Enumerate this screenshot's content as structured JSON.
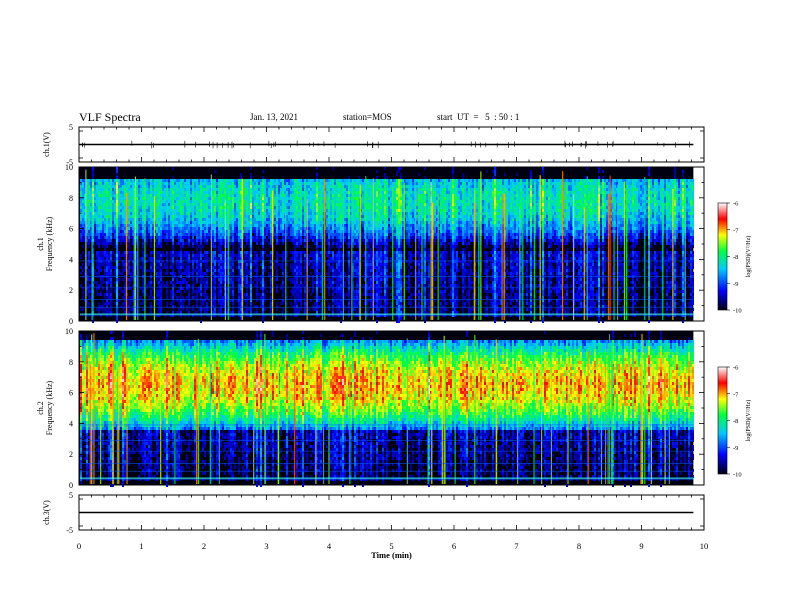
{
  "header": {
    "title": "VLF Spectra",
    "date": "Jan. 13, 2021",
    "station": "station=MOS",
    "start": "start  UT  =   5  : 50 : 1"
  },
  "colors": {
    "background": "#ffffff",
    "axis": "#000000",
    "spectrogram_floor": "#000010"
  },
  "chart_data": [
    {
      "type": "line",
      "name": "ch1-waveform",
      "ylabel": "ch.1(V)",
      "ylim": [
        -5,
        5
      ],
      "yticks": [
        "5",
        "-5"
      ],
      "x": [
        0,
        9.83
      ],
      "y": [
        0,
        0
      ],
      "xlim": [
        0,
        10
      ]
    },
    {
      "type": "heatmap",
      "name": "ch1-spectrogram",
      "ylabel": "ch.1\nFrequency (kHz)",
      "ylabel_lines": [
        "ch.1",
        "Frequency (kHz)"
      ],
      "ylim": [
        0,
        10
      ],
      "yticks": [
        "0",
        "2",
        "4",
        "6",
        "8",
        "10"
      ],
      "xlim": [
        0,
        10
      ],
      "data_end_min": 9.83,
      "band_low_khz": 4.5,
      "band_high_khz": 9.2,
      "peak_khz": 7.8,
      "peak_level": -8.2,
      "colorbar": {
        "label": "log(PSD)(V²/Hz)",
        "ticks": [
          "-6",
          "-7",
          "-8",
          "-9",
          "-10"
        ],
        "range": [
          -10,
          -6
        ]
      }
    },
    {
      "type": "heatmap",
      "name": "ch2-spectrogram",
      "ylabel": "ch.2\nFrequency (kHz)",
      "ylabel_lines": [
        "ch.2",
        "Frequency (kHz)"
      ],
      "ylim": [
        0,
        10
      ],
      "yticks": [
        "0",
        "2",
        "4",
        "6",
        "8",
        "10"
      ],
      "xlim": [
        0,
        10
      ],
      "data_end_min": 9.83,
      "band_low_khz": 3.5,
      "band_high_khz": 9.5,
      "peak_khz": 6.5,
      "peak_level": -7.0,
      "colorbar": {
        "label": "log(PSD)(V²/Hz)",
        "ticks": [
          "-6",
          "-7",
          "-8",
          "-9",
          "-10"
        ],
        "range": [
          -10,
          -6
        ]
      }
    },
    {
      "type": "line",
      "name": "ch3-waveform",
      "ylabel": "ch.3(V)",
      "ylim": [
        -5,
        5
      ],
      "yticks": [
        "5",
        "-5"
      ],
      "x": [
        0,
        9.83
      ],
      "y": [
        0,
        0
      ],
      "xlim": [
        0,
        10
      ]
    }
  ],
  "xaxis": {
    "label": "Time  (min)",
    "ticks": [
      "0",
      "1",
      "2",
      "3",
      "4",
      "5",
      "6",
      "7",
      "8",
      "9",
      "10"
    ]
  }
}
